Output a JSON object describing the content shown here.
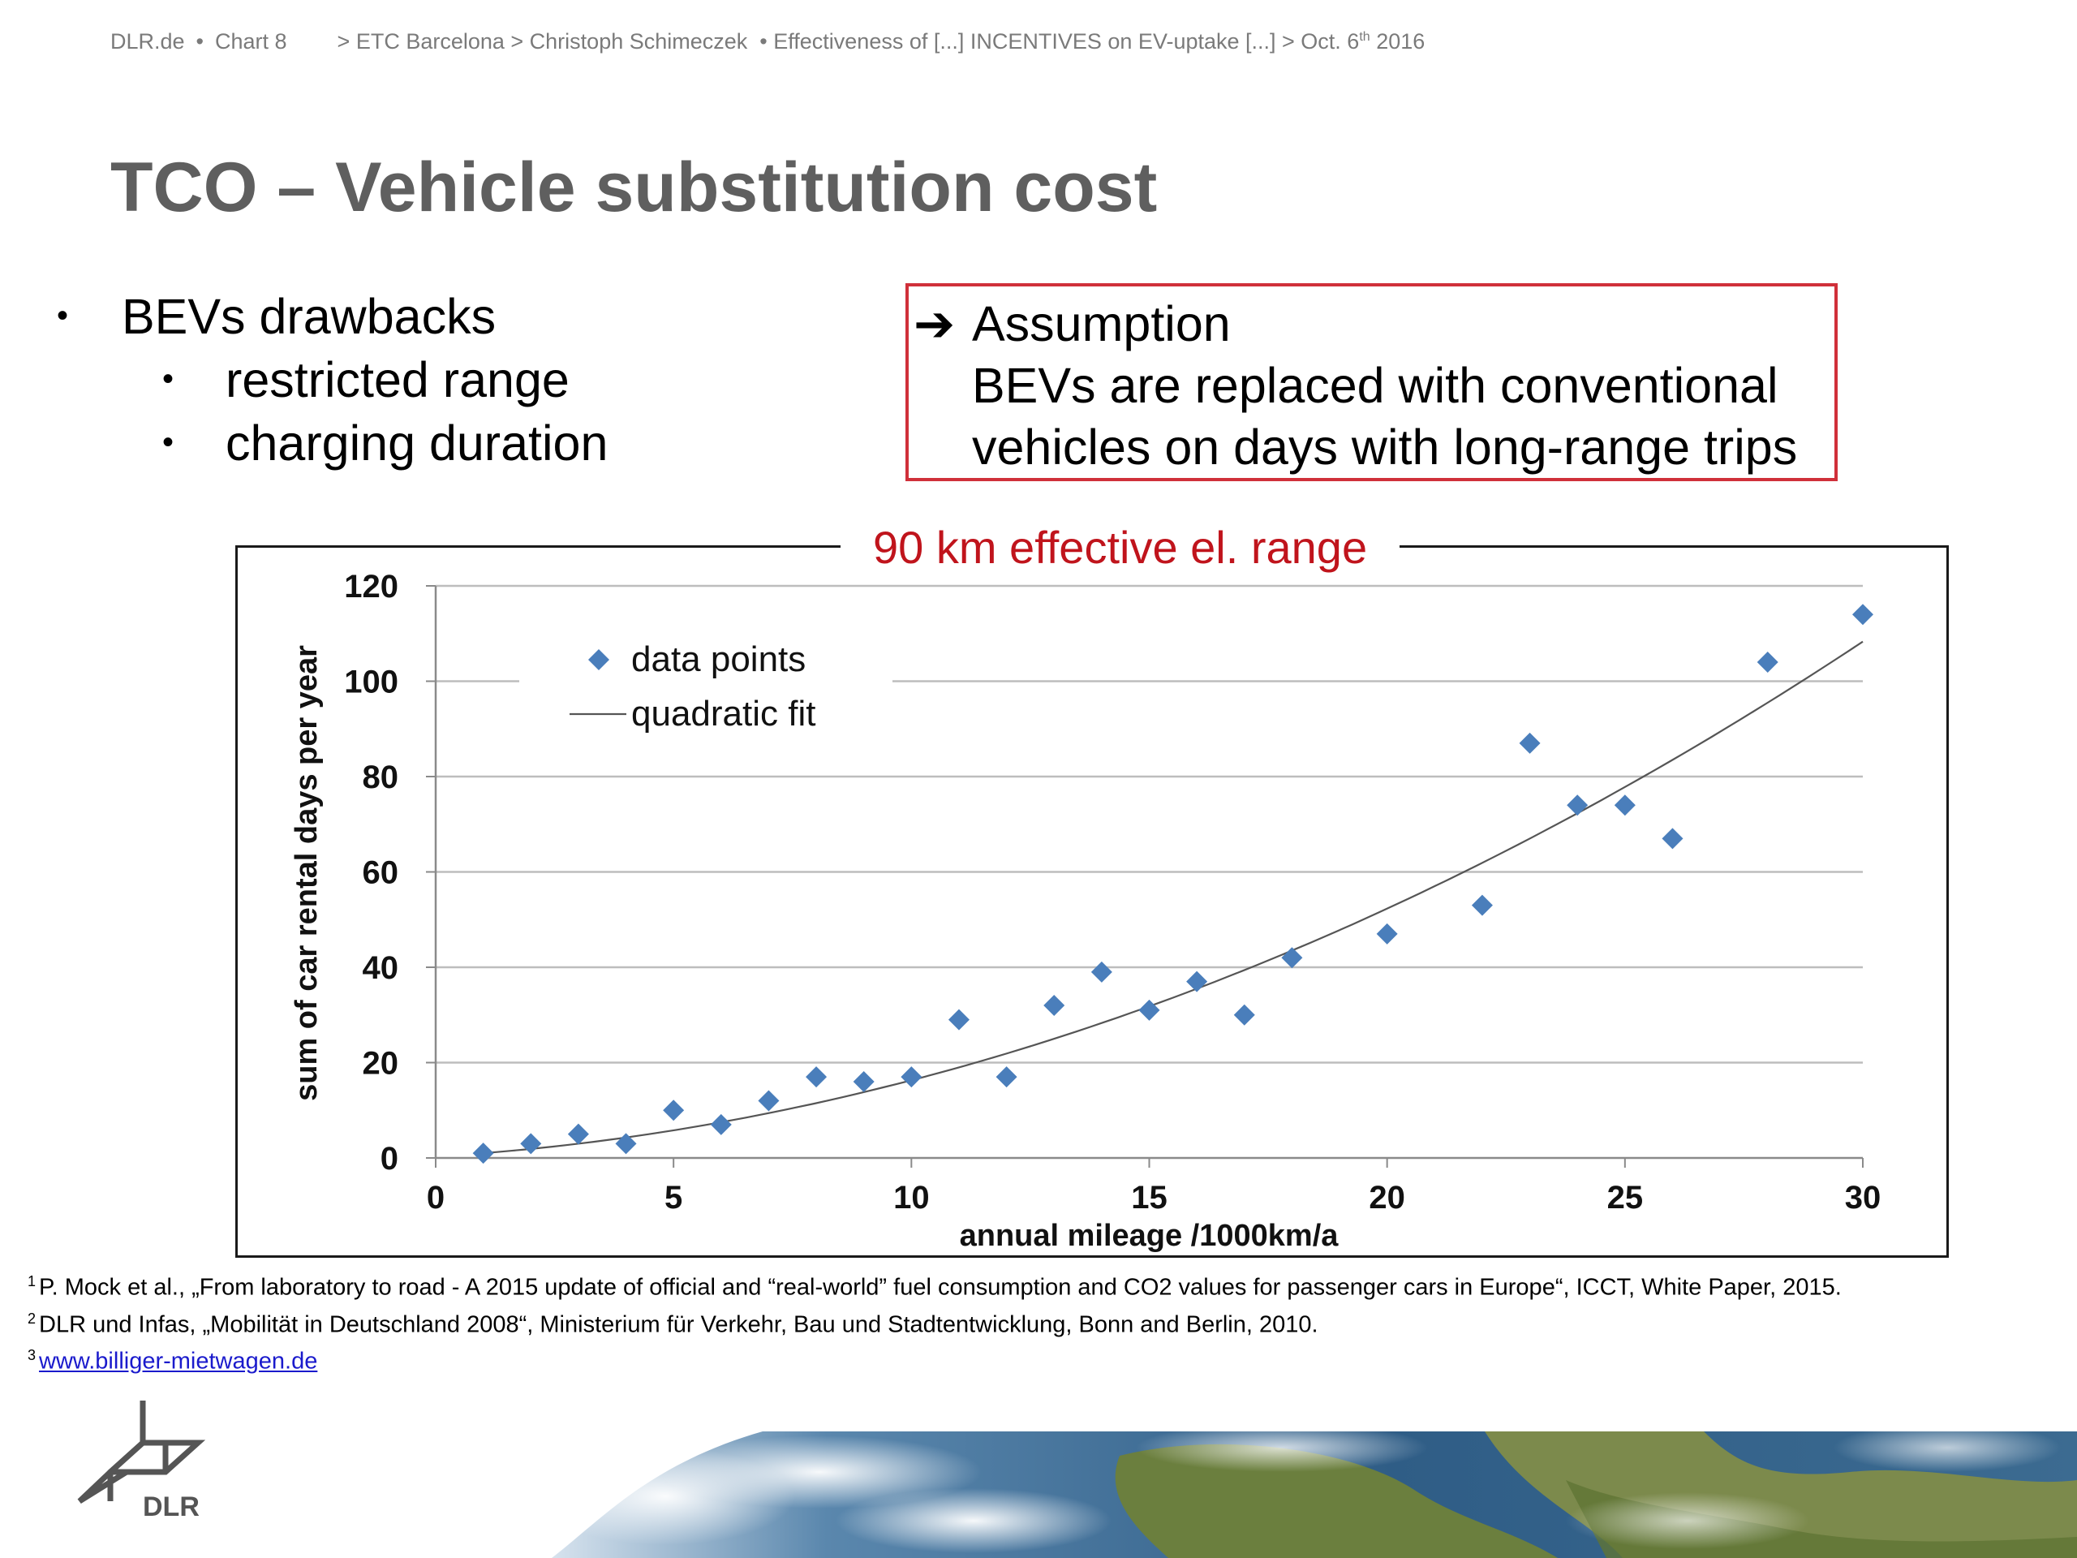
{
  "header": {
    "site": "DLR.de",
    "bullet": "•",
    "chart_label": "Chart 8",
    "crumb_1": "> ETC Barcelona > Christoph Schimeczek",
    "crumb_2": "• Effectiveness of [...] INCENTIVES on EV-uptake [...] > Oct. 6",
    "date_sup": "th",
    "year": "2016"
  },
  "title": "TCO – Vehicle substitution cost",
  "bullets": {
    "main": "BEVs drawbacks",
    "sub": [
      "restricted range",
      "charging duration"
    ],
    "marker": "•"
  },
  "assumption": {
    "arrow": "➔",
    "lines": [
      "Assumption",
      "BEVs are replaced with conventional",
      "vehicles on days with long-range trips"
    ]
  },
  "chart_data": {
    "type": "scatter",
    "title": "90 km effective el. range",
    "xlabel": "annual mileage /1000km/a",
    "ylabel": "sum of car rental days per year",
    "xlim": [
      0,
      30
    ],
    "ylim": [
      0,
      120
    ],
    "x_ticks": [
      0,
      5,
      10,
      15,
      20,
      25,
      30
    ],
    "y_ticks": [
      0,
      20,
      40,
      60,
      80,
      100,
      120
    ],
    "grid": "horizontal",
    "legend_position": "top-left",
    "series": [
      {
        "name": "data points",
        "marker": "diamond",
        "color": "#4a7ebb",
        "points": [
          [
            1,
            1
          ],
          [
            2,
            3
          ],
          [
            3,
            5
          ],
          [
            4,
            3
          ],
          [
            5,
            10
          ],
          [
            6,
            7
          ],
          [
            7,
            12
          ],
          [
            8,
            17
          ],
          [
            9,
            16
          ],
          [
            10,
            17
          ],
          [
            11,
            29
          ],
          [
            12,
            17
          ],
          [
            13,
            32
          ],
          [
            14,
            39
          ],
          [
            15,
            31
          ],
          [
            16,
            37
          ],
          [
            17,
            30
          ],
          [
            18,
            42
          ],
          [
            20,
            47
          ],
          [
            22,
            53
          ],
          [
            23,
            87
          ],
          [
            24,
            74
          ],
          [
            25,
            74
          ],
          [
            26,
            67
          ],
          [
            28,
            104
          ],
          [
            30,
            114
          ]
        ]
      },
      {
        "name": "quadratic fit",
        "style": "line",
        "color": "#555555",
        "x_range": [
          1,
          30
        ],
        "coefficients": {
          "a": 0.1,
          "b": 0.6,
          "c": 0.3
        }
      }
    ]
  },
  "footnotes": [
    {
      "num": "1",
      "text": "P. Mock et al., „From laboratory to road - A 2015 update of official and “real-world” fuel consumption and CO2 values for passenger cars in Europe“, ICCT, White Paper, 2015."
    },
    {
      "num": "2",
      "text": "DLR und Infas, „Mobilität in Deutschland 2008“, Ministerium für Verkehr, Bau und Stadtentwicklung, Bonn and Berlin, 2010."
    },
    {
      "num": "3",
      "link": "www.billiger-mietwagen.de"
    }
  ],
  "logo": {
    "text": "DLR"
  }
}
